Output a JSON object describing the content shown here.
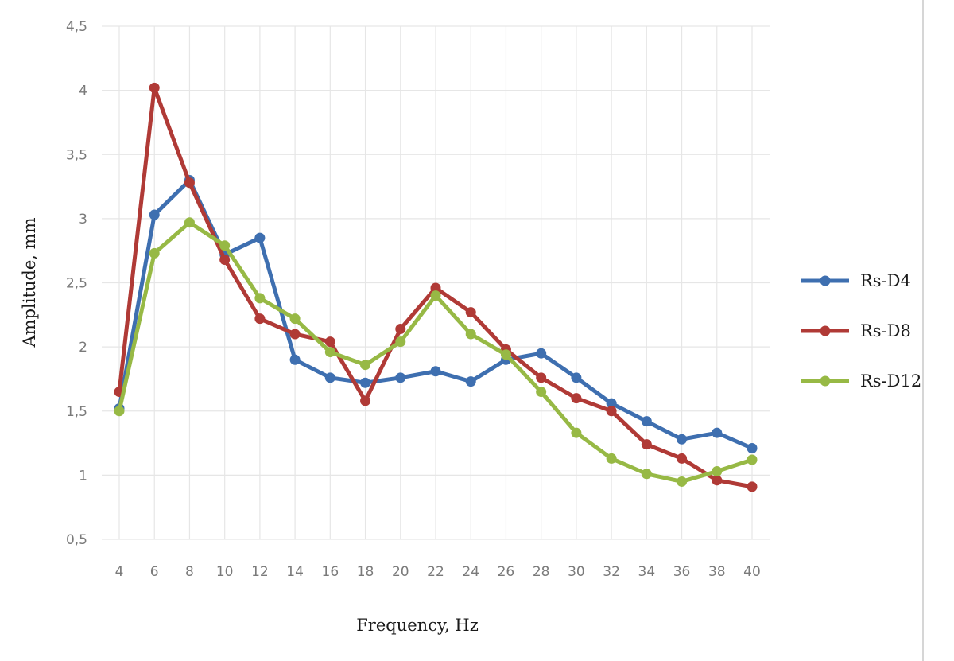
{
  "chart_data": {
    "type": "line",
    "title": "",
    "xlabel": "Frequency, Hz",
    "ylabel": "Amplitude, mm",
    "x": [
      4,
      6,
      8,
      10,
      12,
      14,
      16,
      18,
      20,
      22,
      24,
      26,
      28,
      30,
      32,
      34,
      36,
      38,
      40
    ],
    "x_tick_labels": [
      "4",
      "6",
      "8",
      "10",
      "12",
      "14",
      "16",
      "18",
      "20",
      "22",
      "24",
      "26",
      "28",
      "30",
      "32",
      "34",
      "36",
      "38",
      "40"
    ],
    "ylim": [
      0.5,
      4.5
    ],
    "y_ticks": [
      0.5,
      1,
      1.5,
      2,
      2.5,
      3,
      3.5,
      4,
      4.5
    ],
    "y_tick_labels": [
      "0,5",
      "1",
      "1,5",
      "2",
      "2,5",
      "3",
      "3,5",
      "4",
      "4,5"
    ],
    "grid": true,
    "legend_position": "right",
    "series": [
      {
        "name": "Rs-D4",
        "color": "#3e6fb0",
        "values": [
          1.52,
          3.03,
          3.3,
          2.72,
          2.85,
          1.9,
          1.76,
          1.72,
          1.76,
          1.81,
          1.73,
          1.9,
          1.95,
          1.76,
          1.56,
          1.42,
          1.28,
          1.33,
          1.21
        ]
      },
      {
        "name": "Rs-D8",
        "color": "#b03a36",
        "values": [
          1.65,
          4.02,
          3.28,
          2.68,
          2.22,
          2.1,
          2.04,
          1.58,
          2.14,
          2.46,
          2.27,
          1.98,
          1.76,
          1.6,
          1.5,
          1.24,
          1.13,
          0.96,
          0.91
        ]
      },
      {
        "name": "Rs-D12",
        "color": "#97b945",
        "values": [
          1.5,
          2.73,
          2.97,
          2.79,
          2.38,
          2.22,
          1.96,
          1.86,
          2.04,
          2.4,
          2.1,
          1.94,
          1.65,
          1.33,
          1.13,
          1.01,
          0.95,
          1.03,
          1.12
        ]
      }
    ]
  }
}
